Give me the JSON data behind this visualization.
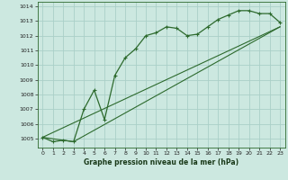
{
  "line1_x": [
    0,
    1,
    2,
    3,
    4,
    5,
    6,
    7,
    8,
    9,
    10,
    11,
    12,
    13,
    14,
    15,
    16,
    17,
    18,
    19,
    20,
    21,
    22,
    23
  ],
  "line1_y": [
    1005.1,
    1004.8,
    1004.9,
    1004.8,
    1007.0,
    1008.3,
    1006.3,
    1009.3,
    1010.5,
    1011.1,
    1012.0,
    1012.2,
    1012.6,
    1012.5,
    1012.0,
    1012.1,
    1012.6,
    1013.1,
    1013.4,
    1013.7,
    1013.7,
    1013.5,
    1013.5,
    1012.9
  ],
  "line2_x": [
    0,
    23
  ],
  "line2_y": [
    1005.1,
    1012.6
  ],
  "line3_x": [
    0,
    3,
    23
  ],
  "line3_y": [
    1005.1,
    1004.8,
    1012.6
  ],
  "bg_color": "#cce8e0",
  "line_color": "#2d6a2d",
  "grid_color": "#aacfc8",
  "xlabel": "Graphe pression niveau de la mer (hPa)",
  "ylim": [
    1004.4,
    1014.3
  ],
  "xlim": [
    -0.5,
    23.5
  ],
  "yticks": [
    1005,
    1006,
    1007,
    1008,
    1009,
    1010,
    1011,
    1012,
    1013,
    1014
  ],
  "xticks": [
    0,
    1,
    2,
    3,
    4,
    5,
    6,
    7,
    8,
    9,
    10,
    11,
    12,
    13,
    14,
    15,
    16,
    17,
    18,
    19,
    20,
    21,
    22,
    23
  ]
}
